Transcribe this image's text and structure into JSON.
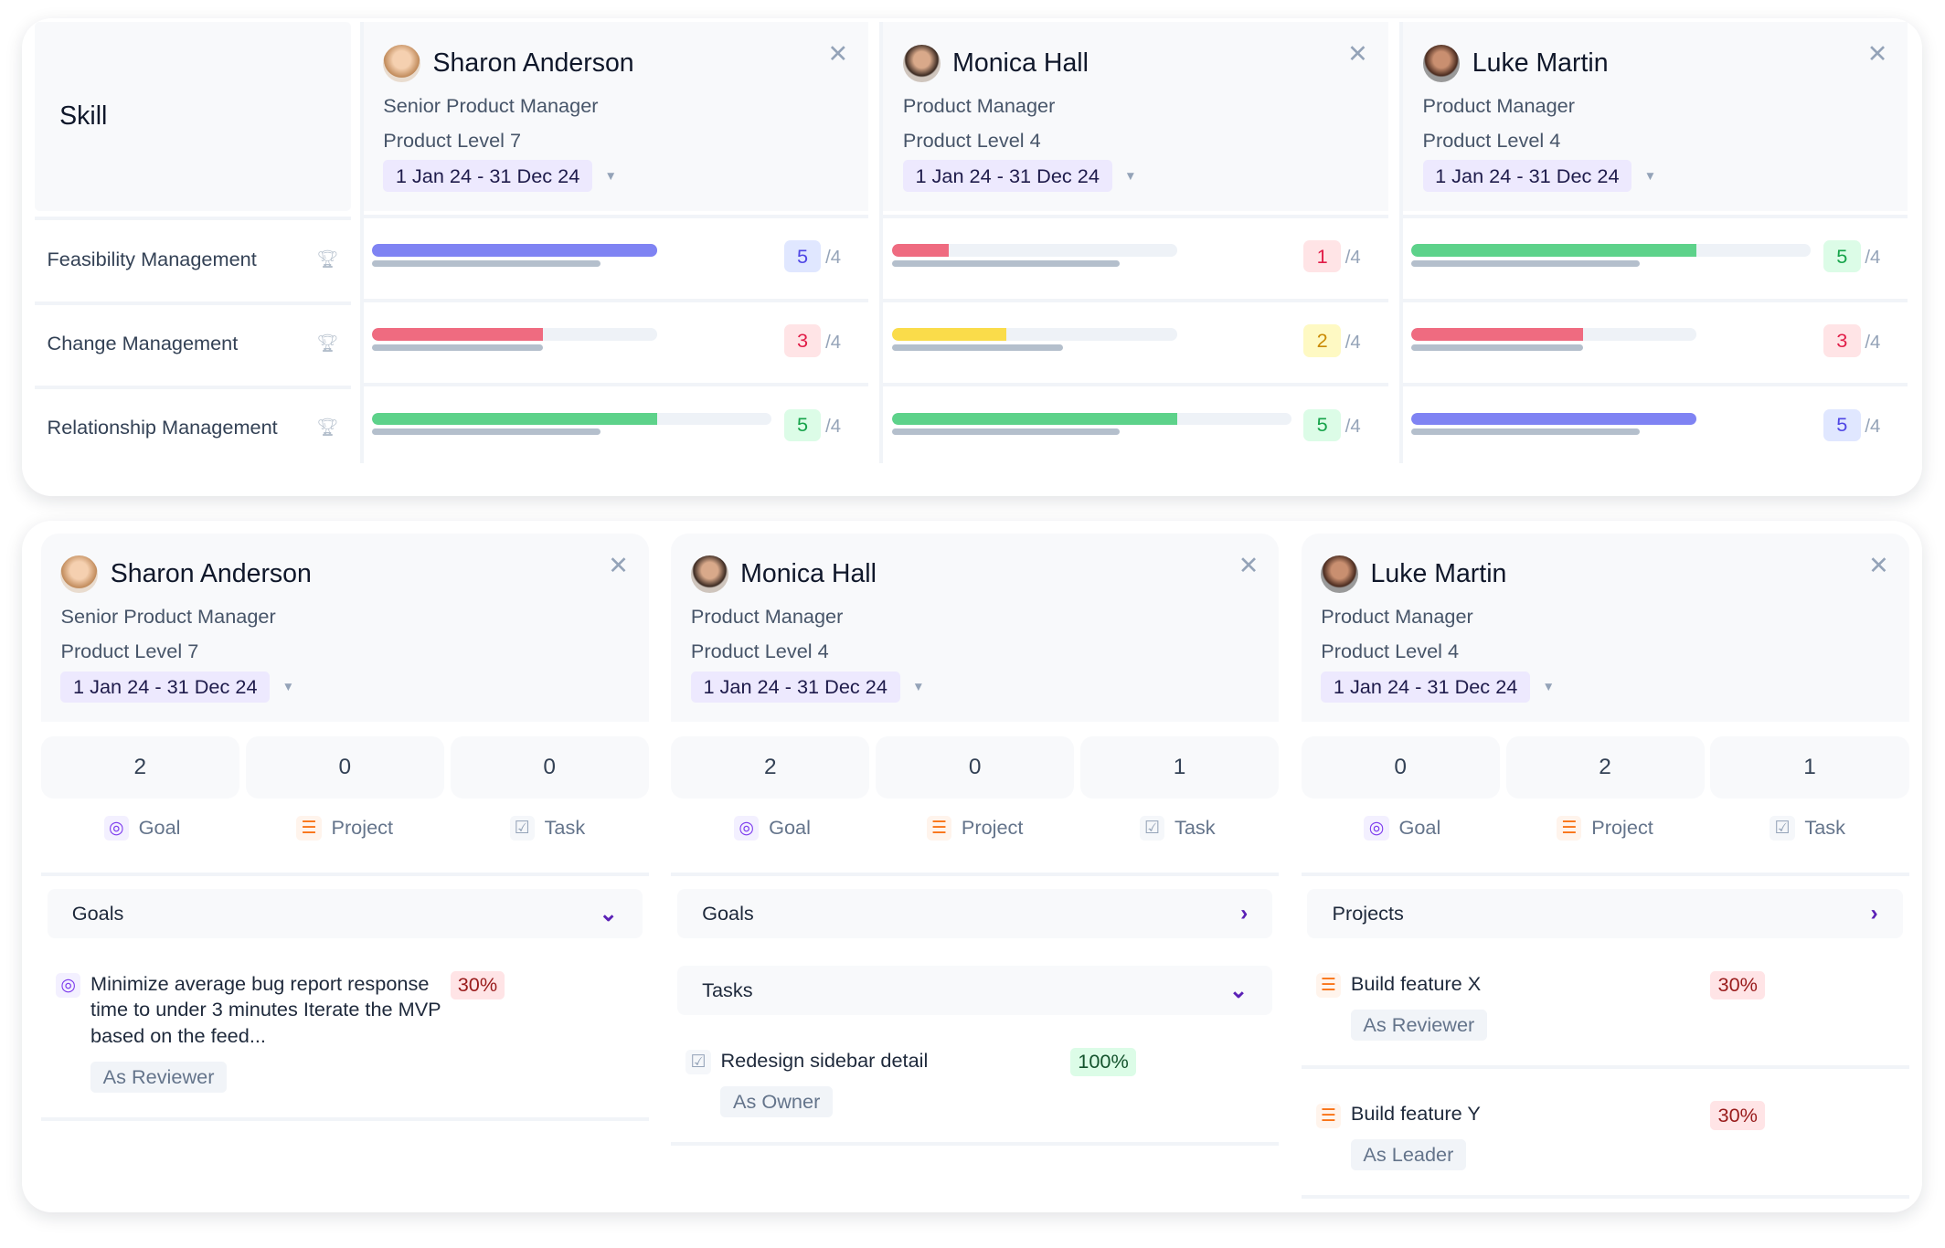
{
  "colors": {
    "accent": "#5b21b6",
    "blue": "#7f83f3",
    "red": "#ef6b80",
    "green": "#5dd28a",
    "yellow": "#fadc4a"
  },
  "skills_table": {
    "header": "Skill",
    "skills": [
      "Feasibility Management",
      "Change Management",
      "Relationship Management"
    ],
    "skill_icon": "trophy-icon",
    "max_label": "/4",
    "people": [
      {
        "name": "Sharon Anderson",
        "role": "Senior Product Manager",
        "level": "Product Level 7",
        "date": "1 Jan 24 - 31 Dec 24",
        "scores": [
          {
            "score": 5,
            "expected": 4,
            "color": "blue"
          },
          {
            "score": 3,
            "expected": 3,
            "color": "red"
          },
          {
            "score": 5,
            "expected": 4,
            "color": "green"
          }
        ]
      },
      {
        "name": "Monica Hall",
        "role": "Product Manager",
        "level": "Product Level 4",
        "date": "1 Jan 24 - 31 Dec 24",
        "scores": [
          {
            "score": 1,
            "expected": 4,
            "color": "red"
          },
          {
            "score": 2,
            "expected": 3,
            "color": "yellow"
          },
          {
            "score": 5,
            "expected": 4,
            "color": "green"
          }
        ]
      },
      {
        "name": "Luke Martin",
        "role": "Product Manager",
        "level": "Product Level 4",
        "date": "1 Jan 24 - 31 Dec 24",
        "scores": [
          {
            "score": 5,
            "expected": 4,
            "color": "green"
          },
          {
            "score": 3,
            "expected": 3,
            "color": "red"
          },
          {
            "score": 5,
            "expected": 4,
            "color": "blue"
          }
        ]
      }
    ]
  },
  "work_cards": [
    {
      "name": "Sharon Anderson",
      "role": "Senior Product Manager",
      "level": "Product Level 7",
      "date": "1 Jan 24 - 31 Dec 24",
      "counts": {
        "goal": "2",
        "project": "0",
        "task": "0"
      },
      "sections": [
        {
          "title": "Goals",
          "expanded": true,
          "items": [
            {
              "type": "goal",
              "text": "Minimize average bug report response time to under 3 minutes Iterate the MVP based on the feed...",
              "percent": "30%",
              "tag": "As Reviewer"
            }
          ]
        }
      ]
    },
    {
      "name": "Monica Hall",
      "role": "Product Manager",
      "level": "Product Level 4",
      "date": "1 Jan 24 - 31 Dec 24",
      "counts": {
        "goal": "2",
        "project": "0",
        "task": "1"
      },
      "sections": [
        {
          "title": "Goals",
          "expanded": false,
          "items": []
        },
        {
          "title": "Tasks",
          "expanded": true,
          "items": [
            {
              "type": "task",
              "text": "Redesign sidebar detail",
              "percent": "100%",
              "tag": "As Owner"
            }
          ]
        }
      ]
    },
    {
      "name": "Luke Martin",
      "role": "Product Manager",
      "level": "Product Level 4",
      "date": "1 Jan 24 - 31 Dec 24",
      "counts": {
        "goal": "0",
        "project": "2",
        "task": "1"
      },
      "sections": [
        {
          "title": "Projects",
          "expanded": false,
          "items": [
            {
              "type": "project",
              "text": "Build feature X",
              "percent": "30%",
              "tag": "As Reviewer"
            },
            {
              "type": "project",
              "text": "Build feature Y",
              "percent": "30%",
              "tag": "As Leader"
            }
          ]
        }
      ]
    }
  ],
  "count_labels": {
    "goal": "Goal",
    "project": "Project",
    "task": "Task"
  }
}
